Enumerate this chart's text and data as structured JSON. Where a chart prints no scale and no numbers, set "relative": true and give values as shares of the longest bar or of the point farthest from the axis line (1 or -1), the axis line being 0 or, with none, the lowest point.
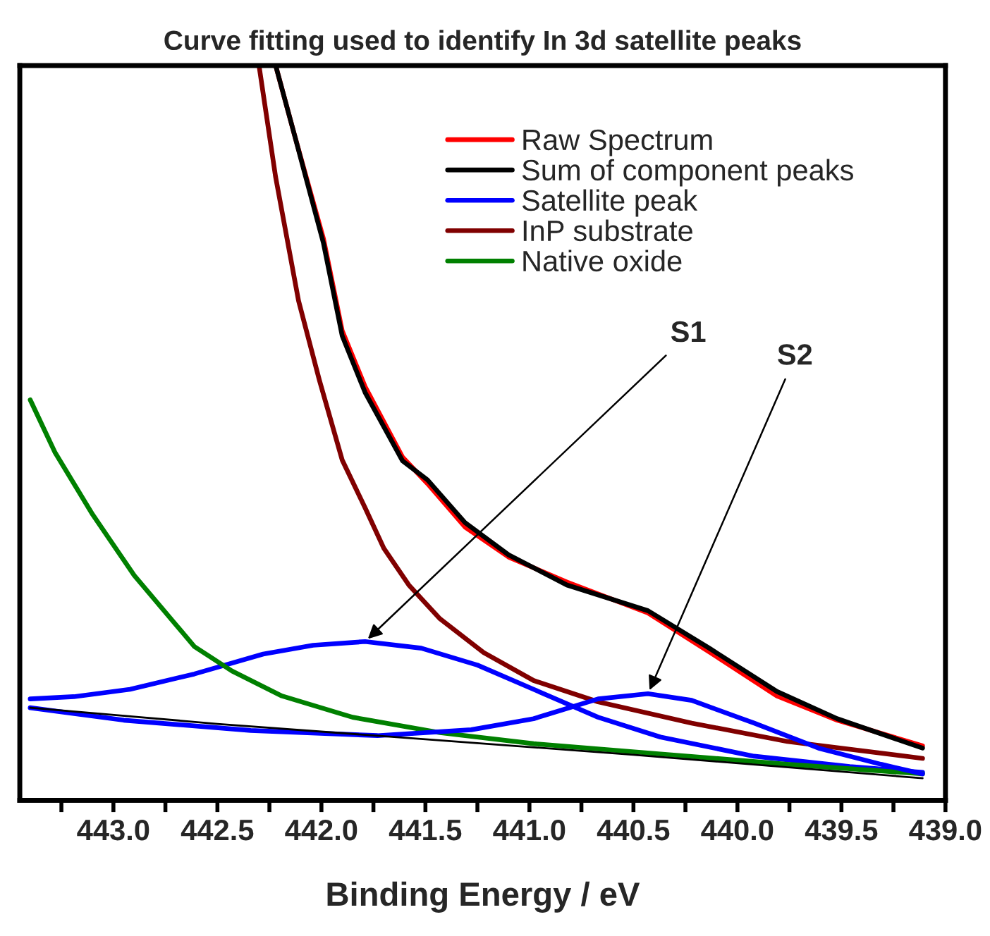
{
  "chart_data": {
    "type": "line",
    "title": "Curve fitting used to identify In 3d satellite peaks",
    "xlabel": "Binding Energy / eV",
    "relative": true,
    "tick_labels": "x",
    "legend": "top right",
    "grid": false,
    "xlim": [
      443.45,
      439.0
    ],
    "xticks": [
      {
        "value": 443.25,
        "label": null
      },
      {
        "value": 443.0,
        "label": "443.0"
      },
      {
        "value": 442.75,
        "label": null
      },
      {
        "value": 442.5,
        "label": "442.5"
      },
      {
        "value": 442.25,
        "label": null
      },
      {
        "value": 442.0,
        "label": "442.0"
      },
      {
        "value": 441.75,
        "label": null
      },
      {
        "value": 441.5,
        "label": "441.5"
      },
      {
        "value": 441.25,
        "label": null
      },
      {
        "value": 441.0,
        "label": "441.0"
      },
      {
        "value": 440.75,
        "label": null
      },
      {
        "value": 440.5,
        "label": "440.5"
      },
      {
        "value": 440.25,
        "label": null
      },
      {
        "value": 440.0,
        "label": "440.0"
      },
      {
        "value": 439.75,
        "label": null
      },
      {
        "value": 439.5,
        "label": "439.5"
      },
      {
        "value": 439.25,
        "label": null
      },
      {
        "value": 439.0,
        "label": "439.0"
      }
    ],
    "series": [
      {
        "name": "Raw Spectrum",
        "color": "#ff0000",
        "x": [
          442.22,
          442.13,
          441.99,
          441.9,
          441.79,
          441.61,
          441.49,
          441.31,
          441.1,
          440.82,
          440.43,
          440.13,
          439.81,
          439.52,
          439.11
        ],
        "values": [
          1.0,
          0.906,
          0.764,
          0.639,
          0.563,
          0.467,
          0.431,
          0.372,
          0.331,
          0.297,
          0.255,
          0.201,
          0.142,
          0.109,
          0.074
        ]
      },
      {
        "name": "Sum of component peaks",
        "color": "#000000",
        "x": [
          442.22,
          442.13,
          441.99,
          441.9,
          441.79,
          441.61,
          441.49,
          441.31,
          441.1,
          440.82,
          440.43,
          440.13,
          439.81,
          439.52,
          439.11
        ],
        "values": [
          1.0,
          0.906,
          0.758,
          0.632,
          0.555,
          0.462,
          0.436,
          0.378,
          0.334,
          0.293,
          0.258,
          0.206,
          0.148,
          0.111,
          0.071
        ]
      },
      {
        "name": "Satellite peak",
        "color": "#0000ff",
        "x": [
          443.4,
          443.19,
          442.92,
          442.61,
          442.28,
          442.04,
          441.79,
          441.52,
          441.25,
          440.98,
          440.67,
          440.37,
          439.92,
          439.46,
          439.11
        ],
        "values": [
          0.138,
          0.141,
          0.151,
          0.172,
          0.199,
          0.211,
          0.216,
          0.207,
          0.184,
          0.151,
          0.113,
          0.086,
          0.06,
          0.046,
          0.038
        ]
      },
      {
        "name": "InP substrate",
        "color": "#800000",
        "x": [
          442.3,
          442.22,
          442.11,
          442.01,
          441.9,
          441.79,
          441.7,
          441.58,
          441.43,
          441.22,
          440.98,
          440.67,
          440.22,
          439.76,
          439.11
        ],
        "values": [
          1.0,
          0.848,
          0.68,
          0.572,
          0.463,
          0.398,
          0.343,
          0.293,
          0.247,
          0.201,
          0.163,
          0.134,
          0.105,
          0.08,
          0.057
        ]
      },
      {
        "name": "Native oxide",
        "color": "#008000",
        "x": [
          443.4,
          443.28,
          443.1,
          442.9,
          442.61,
          442.43,
          442.19,
          441.85,
          441.43,
          440.98,
          440.37,
          439.76,
          439.11
        ],
        "values": [
          0.545,
          0.473,
          0.389,
          0.306,
          0.209,
          0.176,
          0.142,
          0.113,
          0.092,
          0.077,
          0.063,
          0.049,
          0.036
        ]
      },
      {
        "color": "#0000ff",
        "x": [
          443.4,
          442.95,
          442.34,
          441.73,
          441.28,
          440.98,
          440.67,
          440.43,
          440.22,
          439.92,
          439.61,
          439.31,
          439.11
        ],
        "values": [
          0.126,
          0.109,
          0.095,
          0.088,
          0.096,
          0.111,
          0.138,
          0.145,
          0.136,
          0.105,
          0.071,
          0.049,
          0.036
        ]
      },
      {
        "color": "#000000",
        "x": [
          443.4,
          442.5,
          441.5,
          440.5,
          439.11
        ],
        "values": [
          0.126,
          0.104,
          0.083,
          0.062,
          0.03
        ]
      }
    ],
    "annotations": [
      {
        "text": "S1",
        "x": 441.79,
        "y": 0.216
      },
      {
        "text": "S2",
        "x": 440.43,
        "y": 0.145
      }
    ]
  }
}
